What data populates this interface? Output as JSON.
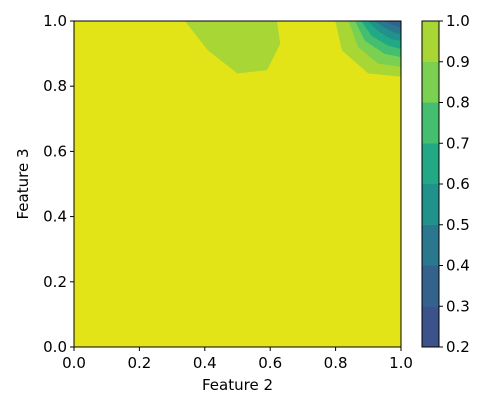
{
  "chart_data": {
    "type": "contourf",
    "xlabel": "Feature 2",
    "ylabel": "Feature 3",
    "xlim": [
      0.0,
      1.0
    ],
    "ylim": [
      0.0,
      1.0
    ],
    "x_ticks": [
      "0.0",
      "0.2",
      "0.4",
      "0.6",
      "0.8",
      "1.0"
    ],
    "y_ticks": [
      "0.0",
      "0.2",
      "0.4",
      "0.6",
      "0.8",
      "1.0"
    ],
    "x_tick_values": [
      0.0,
      0.2,
      0.4,
      0.6,
      0.8,
      1.0
    ],
    "y_tick_values": [
      0.0,
      0.2,
      0.4,
      0.6,
      0.8,
      1.0
    ],
    "colorbar": {
      "levels": [
        0.2,
        0.3,
        0.4,
        0.5,
        0.6,
        0.7,
        0.8,
        0.9,
        1.0
      ],
      "tick_labels": [
        "0.2",
        "0.3",
        "0.4",
        "0.5",
        "0.6",
        "0.7",
        "0.8",
        "0.9",
        "1.0"
      ],
      "colors": [
        "#3b528b",
        "#33638d",
        "#2a788e",
        "#21918c",
        "#22a884",
        "#44bf70",
        "#7ad151",
        "#a8d634",
        "#e2e418"
      ]
    },
    "background_color": "#e2e418",
    "regions": [
      {
        "level": "0.8-0.9",
        "color": "#a8d634",
        "polygon": [
          [
            0.34,
            1.0
          ],
          [
            0.41,
            0.91
          ],
          [
            0.5,
            0.84
          ],
          [
            0.59,
            0.85
          ],
          [
            0.63,
            0.93
          ],
          [
            0.62,
            1.0
          ],
          [
            0.49,
            1.0
          ]
        ]
      },
      {
        "level": "0.8-0.9",
        "color": "#a8d634",
        "polygon": [
          [
            0.8,
            1.0
          ],
          [
            0.82,
            0.91
          ],
          [
            0.9,
            0.84
          ],
          [
            1.0,
            0.83
          ],
          [
            1.0,
            1.0
          ]
        ]
      },
      {
        "level": "0.7-0.8",
        "color": "#7ad151",
        "polygon": [
          [
            0.84,
            1.0
          ],
          [
            0.87,
            0.92
          ],
          [
            0.93,
            0.87
          ],
          [
            1.0,
            0.86
          ],
          [
            1.0,
            1.0
          ]
        ]
      },
      {
        "level": "0.6-0.7",
        "color": "#44bf70",
        "polygon": [
          [
            0.86,
            1.0
          ],
          [
            0.89,
            0.94
          ],
          [
            0.95,
            0.9
          ],
          [
            1.0,
            0.89
          ],
          [
            1.0,
            1.0
          ]
        ]
      },
      {
        "level": "0.5-0.6",
        "color": "#22a884",
        "polygon": [
          [
            0.88,
            1.0
          ],
          [
            0.91,
            0.955
          ],
          [
            0.96,
            0.925
          ],
          [
            1.0,
            0.915
          ],
          [
            1.0,
            1.0
          ]
        ]
      },
      {
        "level": "0.4-0.5",
        "color": "#21918c",
        "polygon": [
          [
            0.9,
            1.0
          ],
          [
            0.93,
            0.97
          ],
          [
            0.97,
            0.945
          ],
          [
            1.0,
            0.94
          ],
          [
            1.0,
            1.0
          ]
        ]
      },
      {
        "level": "0.3-0.4",
        "color": "#2a788e",
        "polygon": [
          [
            0.92,
            1.0
          ],
          [
            0.95,
            0.98
          ],
          [
            0.98,
            0.965
          ],
          [
            1.0,
            0.96
          ],
          [
            1.0,
            1.0
          ]
        ]
      },
      {
        "level": "0.2-0.3",
        "color": "#33638d",
        "polygon": [
          [
            0.95,
            1.0
          ],
          [
            0.97,
            0.99
          ],
          [
            1.0,
            0.98
          ],
          [
            1.0,
            1.0
          ]
        ]
      }
    ]
  }
}
